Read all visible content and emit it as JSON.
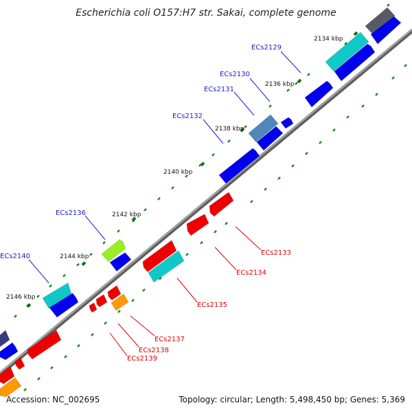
{
  "title": "Escherichia coli O157:H7 str. Sakai, complete genome",
  "footer": {
    "accession": "Accession: NC_002695",
    "summary": "Topology: circular; Length: 5,498,450 bp; Genes: 5,369"
  },
  "kbp_labels": [
    "2134 kbp",
    "2136 kbp",
    "2138 kbp",
    "2140 kbp",
    "2142 kbp",
    "2144 kbp",
    "2146 kbp"
  ],
  "gene_labels_forward": [
    "ECs2129",
    "ECs2130",
    "ECs2131",
    "ECs2132",
    "ECs2136",
    "ECs2140"
  ],
  "gene_labels_reverse": [
    "ECs2133",
    "ECs2134",
    "ECs2135",
    "ECs2137",
    "ECs2138",
    "ECs2139"
  ],
  "colors": {
    "forward_label": "#1a1ad0",
    "reverse_label": "#dd0000",
    "backbone": "#888888",
    "tick": "#1a8a1a",
    "blue": "#0000ee",
    "red": "#ee0000",
    "cyan": "#11c8c8",
    "orange": "#ff9900",
    "lime": "#99ee22",
    "steel": "#4f88b8",
    "gray": "#5a5a66",
    "navy": "#3a3a80"
  }
}
